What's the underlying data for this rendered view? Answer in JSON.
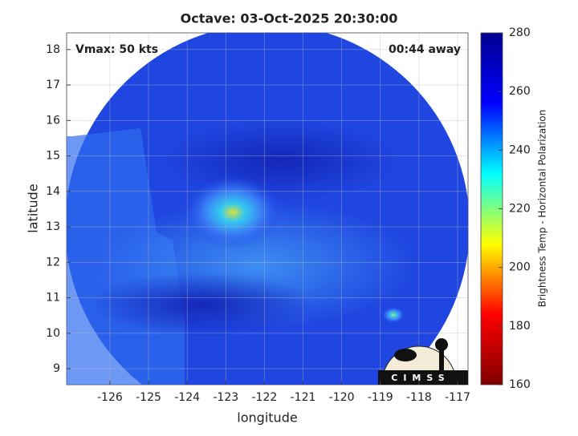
{
  "chart_data": {
    "type": "image",
    "title": "Octave: 03-Oct-2025 20:30:00",
    "annotations": [
      "Vmax: 50 kts",
      "00:44 away"
    ],
    "xlabel": "longitude",
    "ylabel": "latitude",
    "xlim": [
      -127.12,
      -116.73
    ],
    "ylim": [
      8.55,
      18.47
    ],
    "xticks": [
      -126,
      -125,
      -124,
      -123,
      -122,
      -121,
      -120,
      -119,
      -118,
      -117
    ],
    "yticks": [
      9,
      10,
      11,
      12,
      13,
      14,
      15,
      16,
      17,
      18
    ],
    "grid": true,
    "colorbar": {
      "label": "Brightness Temp - Horizontal Polarization",
      "lim": [
        160,
        280
      ],
      "ticks": [
        160,
        180,
        200,
        220,
        240,
        260,
        280
      ],
      "colormap": "jet"
    },
    "logo": "CIMSS"
  }
}
